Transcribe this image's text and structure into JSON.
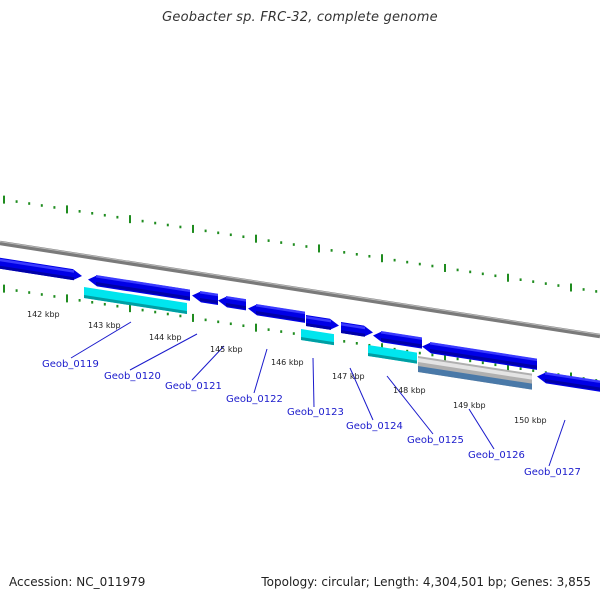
{
  "title": "Geobacter sp. FRC-32, complete genome",
  "footer": {
    "accession": "Accession: NC_011979",
    "summary": "Topology: circular; Length: 4,304,501 bp; Genes: 3,855"
  },
  "colors": {
    "backbone": "#808080",
    "forward_gene": "#0000e6",
    "reverse_gene": "#0000e6",
    "rna_gene": "#00e5ee",
    "pseudo_gene": "#b0b0b0",
    "pseudo_gene_dark": "#4a79a8",
    "ticks": "#1f8c1f",
    "gene_label": "#1a1acc"
  },
  "ruler": {
    "unit": "kbp",
    "labels": [
      "142 kbp",
      "143 kbp",
      "144 kbp",
      "145 kbp",
      "146 kbp",
      "147 kbp",
      "148 kbp",
      "149 kbp",
      "150 kbp"
    ]
  },
  "genes": [
    {
      "label": "Geob_0119"
    },
    {
      "label": "Geob_0120"
    },
    {
      "label": "Geob_0121"
    },
    {
      "label": "Geob_0122"
    },
    {
      "label": "Geob_0123"
    },
    {
      "label": "Geob_0124"
    },
    {
      "label": "Geob_0125"
    },
    {
      "label": "Geob_0126"
    },
    {
      "label": "Geob_0127"
    }
  ]
}
